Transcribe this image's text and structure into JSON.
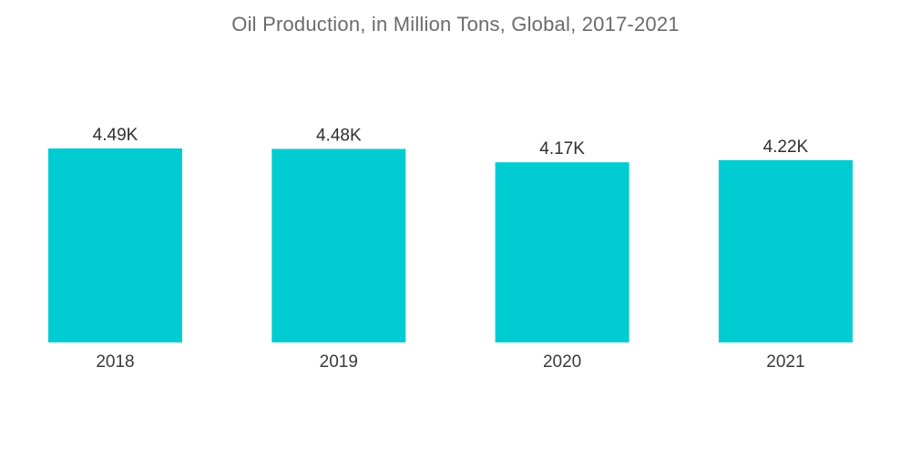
{
  "chart_data": {
    "type": "bar",
    "title": "Oil Production, in Million Tons, Global, 2017-2021",
    "categories": [
      "2018",
      "2019",
      "2020",
      "2021"
    ],
    "values": [
      4490,
      4480,
      4170,
      4220
    ],
    "value_labels": [
      "4.49K",
      "4.48K",
      "4.17K",
      "4.22K"
    ],
    "xlabel": "",
    "ylabel": "",
    "ylim": [
      0,
      4490
    ],
    "grid": false,
    "legend": "none",
    "bar_color": "#00ccd1"
  }
}
